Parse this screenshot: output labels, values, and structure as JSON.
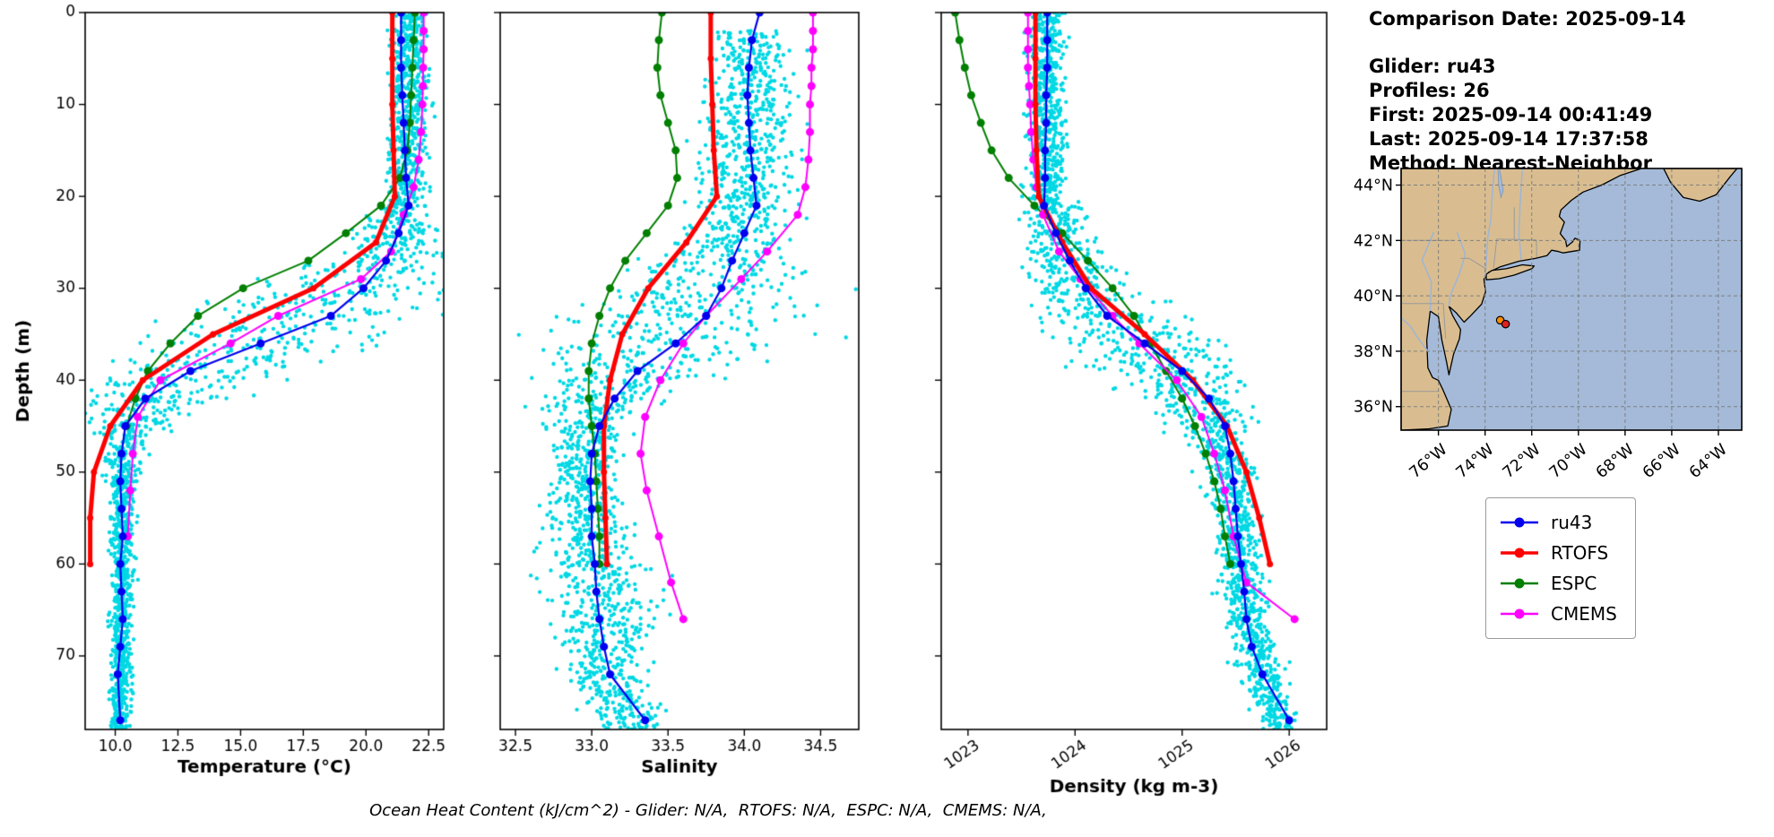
{
  "info_panel": {
    "comparison_date": "Comparison Date: 2025-09-14",
    "glider": "Glider: ru43",
    "profiles": "Profiles: 26",
    "first": "First: 2025-09-14 00:41:49",
    "last": "Last: 2025-09-14 17:37:58",
    "method": "Method: Nearest-Neighbor"
  },
  "caption": "Ocean Heat Content (kJ/cm^2) - Glider: N/A,  RTOFS: N/A,  ESPC: N/A,  CMEMS: N/A,",
  "legend": {
    "entries": [
      {
        "label": "ru43",
        "color": "#0000ee"
      },
      {
        "label": "RTOFS",
        "color": "#ff0000"
      },
      {
        "label": "ESPC",
        "color": "#007f00"
      },
      {
        "label": "CMEMS",
        "color": "#ff00ff"
      }
    ]
  },
  "chart_data": {
    "type": "line",
    "description": "Depth profiles of glider ru43 observations (cyan scatter) vs model products RTOFS, ESPC, CMEMS",
    "ylabel": "Depth (m)",
    "ylim": [
      0,
      78
    ],
    "yticks": [
      0,
      10,
      20,
      30,
      40,
      50,
      60,
      70
    ],
    "ytick_labels": [
      "0",
      "10",
      "20",
      "30",
      "40",
      "50",
      "60",
      "70"
    ],
    "scatter_color": "#00d8e4",
    "plots": [
      {
        "id": "temperature",
        "xlabel": "Temperature (°C)",
        "xlim": [
          8.8,
          23.1
        ],
        "xticks": [
          10.0,
          12.5,
          15.0,
          17.5,
          20.0,
          22.5
        ],
        "xtick_labels": [
          "10.0",
          "12.5",
          "15.0",
          "17.5",
          "20.0",
          "22.5"
        ],
        "rotate_xtick_labels": false,
        "show_ytick_labels": true,
        "seed": 11,
        "scatter": {
          "per_meter": 26,
          "envelope": [
            [
              0,
              21.8,
              0.35
            ],
            [
              20,
              21.6,
              0.4
            ],
            [
              26,
              20.8,
              1.1
            ],
            [
              30,
              19.0,
              2.2
            ],
            [
              34,
              16.5,
              2.5
            ],
            [
              38,
              13.5,
              2.3
            ],
            [
              42,
              11.2,
              1.2
            ],
            [
              46,
              10.5,
              0.45
            ],
            [
              52,
              10.3,
              0.25
            ],
            [
              77,
              10.2,
              0.2
            ]
          ]
        },
        "series": [
          {
            "name": "ru43",
            "color": "#0000ee",
            "lw": 2.2,
            "ms": 4.5,
            "depths": [
              0,
              3,
              6,
              9,
              12,
              15,
              18,
              21,
              24,
              27,
              30,
              33,
              36,
              39,
              42,
              45,
              48,
              51,
              54,
              57,
              60,
              63,
              66,
              69,
              72,
              77
            ],
            "values": [
              21.4,
              21.4,
              21.4,
              21.45,
              21.5,
              21.55,
              21.6,
              21.7,
              21.3,
              20.8,
              19.9,
              18.6,
              15.8,
              13.0,
              11.2,
              10.4,
              10.25,
              10.2,
              10.25,
              10.3,
              10.2,
              10.25,
              10.3,
              10.2,
              10.1,
              10.2
            ]
          },
          {
            "name": "RTOFS",
            "color": "#ff0000",
            "lw": 5,
            "ms": 3.5,
            "depths": [
              0,
              5,
              10,
              15,
              20,
              25,
              30,
              35,
              40,
              45,
              50,
              55,
              60
            ],
            "values": [
              21.05,
              21.05,
              21.05,
              21.1,
              21.15,
              20.4,
              17.9,
              13.9,
              11.1,
              9.8,
              9.15,
              9.0,
              9.0
            ]
          },
          {
            "name": "ESPC",
            "color": "#007f00",
            "lw": 2,
            "ms": 4.5,
            "depths": [
              0,
              3,
              6,
              9,
              12,
              15,
              18,
              21,
              24,
              27,
              30,
              33,
              36,
              39,
              42,
              45
            ],
            "values": [
              21.95,
              21.9,
              21.85,
              21.8,
              21.75,
              21.65,
              21.35,
              20.6,
              19.2,
              17.7,
              15.1,
              13.3,
              12.2,
              11.3,
              10.8,
              10.45
            ]
          },
          {
            "name": "CMEMS",
            "color": "#ff00ff",
            "lw": 2,
            "ms": 4.5,
            "depths": [
              0,
              2,
              4,
              6,
              8,
              10,
              13,
              16,
              19,
              22,
              26,
              29,
              33,
              36,
              40,
              44,
              48,
              52,
              57
            ],
            "values": [
              22.3,
              22.3,
              22.3,
              22.28,
              22.27,
              22.25,
              22.2,
              22.1,
              21.9,
              21.5,
              21.0,
              19.8,
              16.5,
              14.6,
              11.8,
              10.9,
              10.7,
              10.6,
              10.5
            ]
          }
        ]
      },
      {
        "id": "salinity",
        "xlabel": "Salinity",
        "xlim": [
          32.4,
          34.75
        ],
        "xticks": [
          32.5,
          33.0,
          33.5,
          34.0,
          34.5
        ],
        "xtick_labels": [
          "32.5",
          "33.0",
          "33.5",
          "34.0",
          "34.5"
        ],
        "rotate_xtick_labels": false,
        "show_ytick_labels": false,
        "seed": 22,
        "scatter": {
          "per_meter": 26,
          "envelope": [
            [
              2,
              34.05,
              0.12
            ],
            [
              20,
              34.0,
              0.15
            ],
            [
              26,
              33.9,
              0.22
            ],
            [
              31,
              33.7,
              0.35
            ],
            [
              35,
              33.5,
              0.42
            ],
            [
              39,
              33.2,
              0.3
            ],
            [
              43,
              33.0,
              0.15
            ],
            [
              50,
              32.95,
              0.09
            ],
            [
              58,
              33.0,
              0.15
            ],
            [
              66,
              33.1,
              0.18
            ],
            [
              72,
              33.1,
              0.14
            ],
            [
              77,
              33.25,
              0.1
            ]
          ]
        },
        "series": [
          {
            "name": "ru43",
            "color": "#0000ee",
            "lw": 2.2,
            "ms": 4.5,
            "depths": [
              0,
              3,
              6,
              9,
              12,
              15,
              18,
              21,
              24,
              27,
              30,
              33,
              36,
              39,
              42,
              45,
              48,
              51,
              54,
              57,
              60,
              63,
              66,
              69,
              72,
              77
            ],
            "values": [
              34.1,
              34.05,
              34.03,
              34.02,
              34.03,
              34.04,
              34.06,
              34.08,
              34.0,
              33.92,
              33.85,
              33.75,
              33.55,
              33.3,
              33.15,
              33.05,
              33.0,
              32.99,
              33.0,
              33.0,
              33.02,
              33.03,
              33.05,
              33.08,
              33.12,
              33.35
            ]
          },
          {
            "name": "RTOFS",
            "color": "#ff0000",
            "lw": 5,
            "ms": 3.5,
            "depths": [
              0,
              5,
              10,
              15,
              20,
              25,
              30,
              35,
              40,
              45,
              50,
              55,
              60
            ],
            "values": [
              33.78,
              33.78,
              33.79,
              33.8,
              33.82,
              33.62,
              33.37,
              33.2,
              33.12,
              33.08,
              33.08,
              33.09,
              33.1
            ]
          },
          {
            "name": "ESPC",
            "color": "#007f00",
            "lw": 2,
            "ms": 4.5,
            "depths": [
              0,
              3,
              6,
              9,
              12,
              15,
              18,
              21,
              24,
              27,
              30,
              33,
              36,
              39,
              42,
              45,
              48,
              51,
              54,
              57,
              60
            ],
            "values": [
              33.46,
              33.44,
              33.43,
              33.45,
              33.5,
              33.55,
              33.56,
              33.5,
              33.36,
              33.22,
              33.12,
              33.05,
              33.0,
              32.98,
              32.98,
              33.0,
              33.02,
              33.03,
              33.04,
              33.05,
              33.05
            ]
          },
          {
            "name": "CMEMS",
            "color": "#ff00ff",
            "lw": 2,
            "ms": 4.5,
            "depths": [
              0,
              2,
              4,
              6,
              8,
              10,
              13,
              16,
              19,
              22,
              26,
              29,
              33,
              36,
              40,
              44,
              48,
              52,
              57,
              62,
              66
            ],
            "values": [
              34.45,
              34.45,
              34.45,
              34.44,
              34.44,
              34.43,
              34.43,
              34.42,
              34.4,
              34.35,
              34.15,
              33.98,
              33.75,
              33.6,
              33.45,
              33.35,
              33.32,
              33.36,
              33.44,
              33.52,
              33.6
            ]
          }
        ]
      },
      {
        "id": "density",
        "xlabel": "Density (kg m-3)",
        "xlim": [
          1022.75,
          1026.35
        ],
        "xticks": [
          1023,
          1024,
          1025,
          1026
        ],
        "xtick_labels": [
          "1023",
          "1024",
          "1025",
          "1026"
        ],
        "rotate_xtick_labels": true,
        "show_ytick_labels": false,
        "seed": 33,
        "scatter": {
          "per_meter": 26,
          "envelope": [
            [
              0,
              1023.72,
              0.08
            ],
            [
              20,
              1023.75,
              0.1
            ],
            [
              26,
              1023.9,
              0.18
            ],
            [
              31,
              1024.15,
              0.3
            ],
            [
              35,
              1024.5,
              0.4
            ],
            [
              39,
              1024.9,
              0.35
            ],
            [
              43,
              1025.2,
              0.2
            ],
            [
              48,
              1025.4,
              0.12
            ],
            [
              55,
              1025.5,
              0.1
            ],
            [
              65,
              1025.6,
              0.1
            ],
            [
              73,
              1025.78,
              0.1
            ],
            [
              77,
              1025.92,
              0.08
            ]
          ]
        },
        "series": [
          {
            "name": "ru43",
            "color": "#0000ee",
            "lw": 2.2,
            "ms": 4.5,
            "depths": [
              0,
              3,
              6,
              9,
              12,
              15,
              18,
              21,
              24,
              27,
              30,
              33,
              36,
              39,
              42,
              45,
              48,
              51,
              54,
              57,
              60,
              63,
              66,
              69,
              72,
              77
            ],
            "values": [
              1023.74,
              1023.74,
              1023.74,
              1023.73,
              1023.73,
              1023.72,
              1023.72,
              1023.71,
              1023.82,
              1023.95,
              1024.1,
              1024.3,
              1024.65,
              1025.0,
              1025.25,
              1025.4,
              1025.45,
              1025.48,
              1025.5,
              1025.52,
              1025.55,
              1025.58,
              1025.6,
              1025.65,
              1025.75,
              1026.0
            ]
          },
          {
            "name": "RTOFS",
            "color": "#ff0000",
            "lw": 5,
            "ms": 3.5,
            "depths": [
              0,
              5,
              10,
              15,
              20,
              25,
              30,
              35,
              40,
              45,
              50,
              55,
              60
            ],
            "values": [
              1023.63,
              1023.63,
              1023.63,
              1023.64,
              1023.66,
              1023.88,
              1024.15,
              1024.65,
              1025.1,
              1025.42,
              1025.6,
              1025.72,
              1025.82
            ]
          },
          {
            "name": "ESPC",
            "color": "#007f00",
            "lw": 2,
            "ms": 4.5,
            "depths": [
              0,
              3,
              6,
              9,
              12,
              15,
              18,
              21,
              24,
              27,
              30,
              33,
              36,
              39,
              42,
              45,
              48,
              51,
              54,
              57,
              60
            ],
            "values": [
              1022.88,
              1022.92,
              1022.97,
              1023.03,
              1023.12,
              1023.22,
              1023.38,
              1023.62,
              1023.88,
              1024.12,
              1024.35,
              1024.55,
              1024.7,
              1024.85,
              1025.0,
              1025.12,
              1025.22,
              1025.3,
              1025.36,
              1025.4,
              1025.45
            ]
          },
          {
            "name": "CMEMS",
            "color": "#ff00ff",
            "lw": 2,
            "ms": 4.5,
            "depths": [
              0,
              2,
              4,
              6,
              8,
              10,
              13,
              16,
              19,
              22,
              26,
              29,
              33,
              36,
              40,
              44,
              48,
              52,
              57,
              62,
              66
            ],
            "values": [
              1023.56,
              1023.56,
              1023.56,
              1023.56,
              1023.57,
              1023.58,
              1023.59,
              1023.61,
              1023.64,
              1023.7,
              1023.85,
              1024.05,
              1024.35,
              1024.6,
              1024.95,
              1025.18,
              1025.3,
              1025.4,
              1025.48,
              1025.6,
              1026.05
            ]
          }
        ]
      }
    ],
    "map": {
      "lon_range": [
        -77.6,
        -63.0
      ],
      "lat_range": [
        35.15,
        44.6
      ],
      "lon_ticks": [
        -76,
        -74,
        -72,
        -70,
        -68,
        -66,
        -64
      ],
      "lon_tick_labels": [
        "76°W",
        "74°W",
        "72°W",
        "70°W",
        "68°W",
        "66°W",
        "64°W"
      ],
      "lat_ticks": [
        36,
        38,
        40,
        42,
        44
      ],
      "lat_tick_labels": [
        "36°N",
        "38°N",
        "40°N",
        "42°N",
        "44°N"
      ],
      "land_color": "#d9bd90",
      "ocean_color": "#a4bad8",
      "markers": [
        {
          "lon": -73.35,
          "lat": 39.12,
          "color": "#ff8c00"
        },
        {
          "lon": -73.12,
          "lat": 38.98,
          "color": "#e02020"
        }
      ]
    }
  }
}
